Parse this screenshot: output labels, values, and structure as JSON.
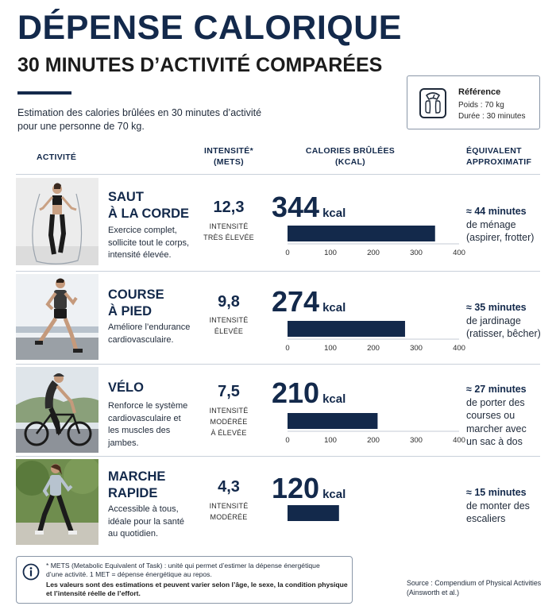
{
  "header": {
    "title": "DÉPENSE CALORIQUE",
    "subtitle": "30 MINUTES D’ACTIVITÉ COMPARÉES",
    "intro_line1": "Estimation des calories brûlées en 30 minutes d’activité",
    "intro_line2": "pour une personne de 70 kg."
  },
  "reference": {
    "title": "Référence",
    "weight": "Poids : 70 kg",
    "duration": "Durée : 30 minutes",
    "icon": "scale-icon"
  },
  "columns": {
    "activity": "ACTIVITÉ",
    "intensity_l1": "INTENSITÉ*",
    "intensity_l2": "(METS)",
    "calories_l1": "CALORIES BRÛLÉES",
    "calories_l2": "(KCAL)",
    "equiv_l1": "ÉQUIVALENT",
    "equiv_l2": "APPROXIMATIF"
  },
  "chart_data": {
    "type": "bar",
    "orientation": "horizontal",
    "xlim": [
      0,
      400
    ],
    "ticks": [
      "0",
      "100",
      "200",
      "300",
      "400"
    ],
    "unit": "kcal",
    "bar_color": "#13294b",
    "categories": [
      "SAUT À LA CORDE",
      "COURSE À PIED",
      "VÉLO",
      "MARCHE RAPIDE"
    ],
    "values": [
      344,
      274,
      210,
      120
    ]
  },
  "activities": [
    {
      "name_l1": "SAUT",
      "name_l2": "À LA CORDE",
      "desc": [
        "Exercice complet,",
        "sollicite tout le corps,",
        "intensité élevée."
      ],
      "mets": "12,3",
      "intensity": [
        "INTENSITÉ",
        "TRÈS ÉLEVÉE"
      ],
      "kcal": "344",
      "kcal_unit": "kcal",
      "equiv_bold": "≈ 44 minutes",
      "equiv": [
        "de ménage",
        "(aspirer, frotter)"
      ]
    },
    {
      "name_l1": "COURSE",
      "name_l2": "À PIED",
      "desc": [
        "Améliore l’endurance",
        "cardiovasculaire."
      ],
      "mets": "9,8",
      "intensity": [
        "INTENSITÉ",
        "ÉLEVÉE"
      ],
      "kcal": "274",
      "kcal_unit": "kcal",
      "equiv_bold": "≈ 35 minutes",
      "equiv": [
        "de jardinage",
        "(ratisser, bêcher)"
      ]
    },
    {
      "name_l1": "VÉLO",
      "name_l2": "",
      "desc": [
        "Renforce le système",
        "cardiovasculaire et",
        "les muscles des",
        "jambes."
      ],
      "mets": "7,5",
      "intensity": [
        "INTENSITÉ",
        "MODÉRÉE",
        "À ÉLEVÉE"
      ],
      "kcal": "210",
      "kcal_unit": "kcal",
      "equiv_bold": "≈ 27 minutes",
      "equiv": [
        "de porter des",
        "courses ou",
        "marcher avec",
        "un sac à dos"
      ]
    },
    {
      "name_l1": "MARCHE",
      "name_l2": "RAPIDE",
      "desc": [
        "Accessible à tous,",
        "idéale pour la santé",
        "au quotidien."
      ],
      "mets": "4,3",
      "intensity": [
        "INTENSITÉ",
        "MODÉRÉE"
      ],
      "kcal": "120",
      "kcal_unit": "kcal",
      "equiv_bold": "≈ 15 minutes",
      "equiv": [
        "de monter des",
        "escaliers"
      ]
    }
  ],
  "footnote": {
    "icon": "info-icon",
    "line1": "* METS (Metabolic Equivalent of Task) : unité qui permet d’estimer la dépense énergétique",
    "line2": "d’une activité. 1 MET = dépense énergétique au repos.",
    "line3": "Les valeurs sont des estimations et peuvent varier selon l’âge, le sexe, la condition physique",
    "line4": "et l’intensité réelle de l’effort."
  },
  "source": {
    "line1": "Source : Compendium of Physical Activities",
    "line2": "(Ainsworth et al.)"
  }
}
